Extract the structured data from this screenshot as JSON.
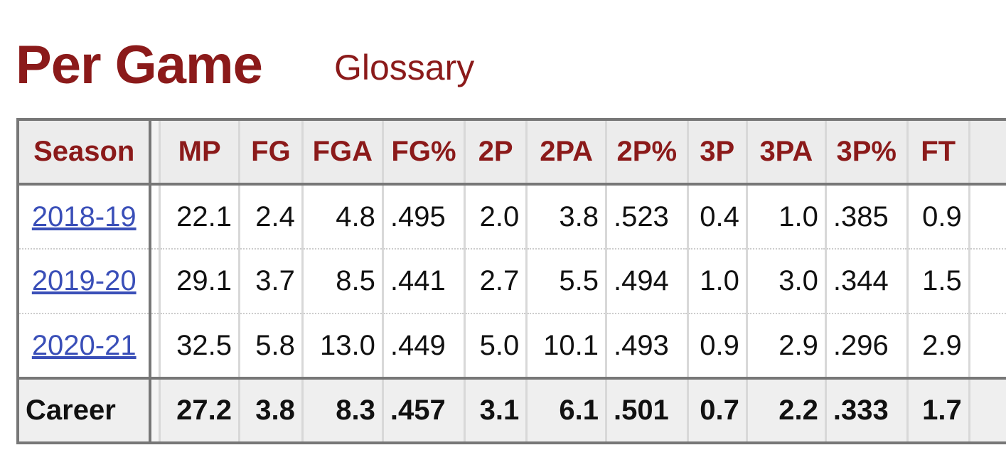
{
  "title": "Per Game",
  "glossary_label": "Glossary",
  "colors": {
    "accent": "#8b1a1a",
    "link": "#3a4fb8"
  },
  "table": {
    "columns": [
      "Season",
      "MP",
      "FG",
      "FGA",
      "FG%",
      "2P",
      "2PA",
      "2P%",
      "3P",
      "3PA",
      "3P%",
      "FT"
    ],
    "rows": [
      [
        "2018-19",
        "22.1",
        "2.4",
        "4.8",
        ".495",
        "2.0",
        "3.8",
        ".523",
        "0.4",
        "1.0",
        ".385",
        "0.9"
      ],
      [
        "2019-20",
        "29.1",
        "3.7",
        "8.5",
        ".441",
        "2.7",
        "5.5",
        ".494",
        "1.0",
        "3.0",
        ".344",
        "1.5"
      ],
      [
        "2020-21",
        "32.5",
        "5.8",
        "13.0",
        ".449",
        "5.0",
        "10.1",
        ".493",
        "0.9",
        "2.9",
        ".296",
        "2.9"
      ]
    ],
    "career": [
      "Career",
      "27.2",
      "3.8",
      "8.3",
      ".457",
      "3.1",
      "6.1",
      ".501",
      "0.7",
      "2.2",
      ".333",
      "1.7"
    ]
  }
}
